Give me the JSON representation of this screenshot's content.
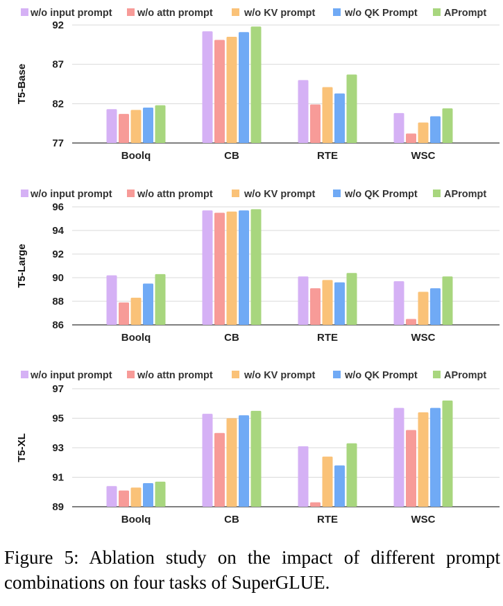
{
  "caption": "Figure 5:  Ablation study on the impact of different prompt combinations on four tasks of SuperGLUE.",
  "colors": [
    "#d5b1f5",
    "#f79b98",
    "#fac278",
    "#70aaf5",
    "#a8d67e"
  ],
  "chart_data": [
    {
      "type": "bar",
      "ylabel": "T5-Base",
      "categories": [
        "Boolq",
        "CB",
        "RTE",
        "WSC"
      ],
      "yticks": [
        "77",
        "82",
        "87",
        "92"
      ],
      "ylim": [
        77,
        92
      ],
      "legend_position": "top",
      "series": [
        {
          "name": "w/o input prompt",
          "values": [
            81.3,
            91.2,
            85.0,
            80.8
          ]
        },
        {
          "name": "w/o attn prompt",
          "values": [
            80.7,
            90.1,
            81.9,
            78.2
          ]
        },
        {
          "name": "w/o KV prompt",
          "values": [
            81.2,
            90.5,
            84.1,
            79.6
          ]
        },
        {
          "name": "w/o QK Prompt",
          "values": [
            81.5,
            91.1,
            83.3,
            80.4
          ]
        },
        {
          "name": "APrompt",
          "values": [
            81.8,
            91.8,
            85.7,
            81.4
          ]
        }
      ]
    },
    {
      "type": "bar",
      "ylabel": "T5-Large",
      "categories": [
        "Boolq",
        "CB",
        "RTE",
        "WSC"
      ],
      "yticks": [
        "86",
        "88",
        "90",
        "92",
        "94",
        "96"
      ],
      "ylim": [
        86,
        96
      ],
      "legend_position": "top",
      "series": [
        {
          "name": "w/o input prompt",
          "values": [
            90.2,
            95.7,
            90.1,
            89.7
          ]
        },
        {
          "name": "w/o attn prompt",
          "values": [
            87.9,
            95.5,
            89.1,
            86.5
          ]
        },
        {
          "name": "w/o KV prompt",
          "values": [
            88.3,
            95.6,
            89.8,
            88.8
          ]
        },
        {
          "name": "w/o QK Prompt",
          "values": [
            89.5,
            95.7,
            89.6,
            89.1
          ]
        },
        {
          "name": "APrompt",
          "values": [
            90.3,
            95.8,
            90.4,
            90.1
          ]
        }
      ]
    },
    {
      "type": "bar",
      "ylabel": "T5-XL",
      "categories": [
        "Boolq",
        "CB",
        "RTE",
        "WSC"
      ],
      "yticks": [
        "89",
        "91",
        "93",
        "95",
        "97"
      ],
      "ylim": [
        89,
        97
      ],
      "legend_position": "top",
      "series": [
        {
          "name": "w/o input prompt",
          "values": [
            90.4,
            95.3,
            93.1,
            95.7
          ]
        },
        {
          "name": "w/o attn prompt",
          "values": [
            90.1,
            94.0,
            89.3,
            94.2
          ]
        },
        {
          "name": "w/o KV prompt",
          "values": [
            90.3,
            95.0,
            92.4,
            95.4
          ]
        },
        {
          "name": "w/o QK Prompt",
          "values": [
            90.6,
            95.2,
            91.8,
            95.7
          ]
        },
        {
          "name": "APrompt",
          "values": [
            90.7,
            95.5,
            93.3,
            96.2
          ]
        }
      ]
    }
  ]
}
